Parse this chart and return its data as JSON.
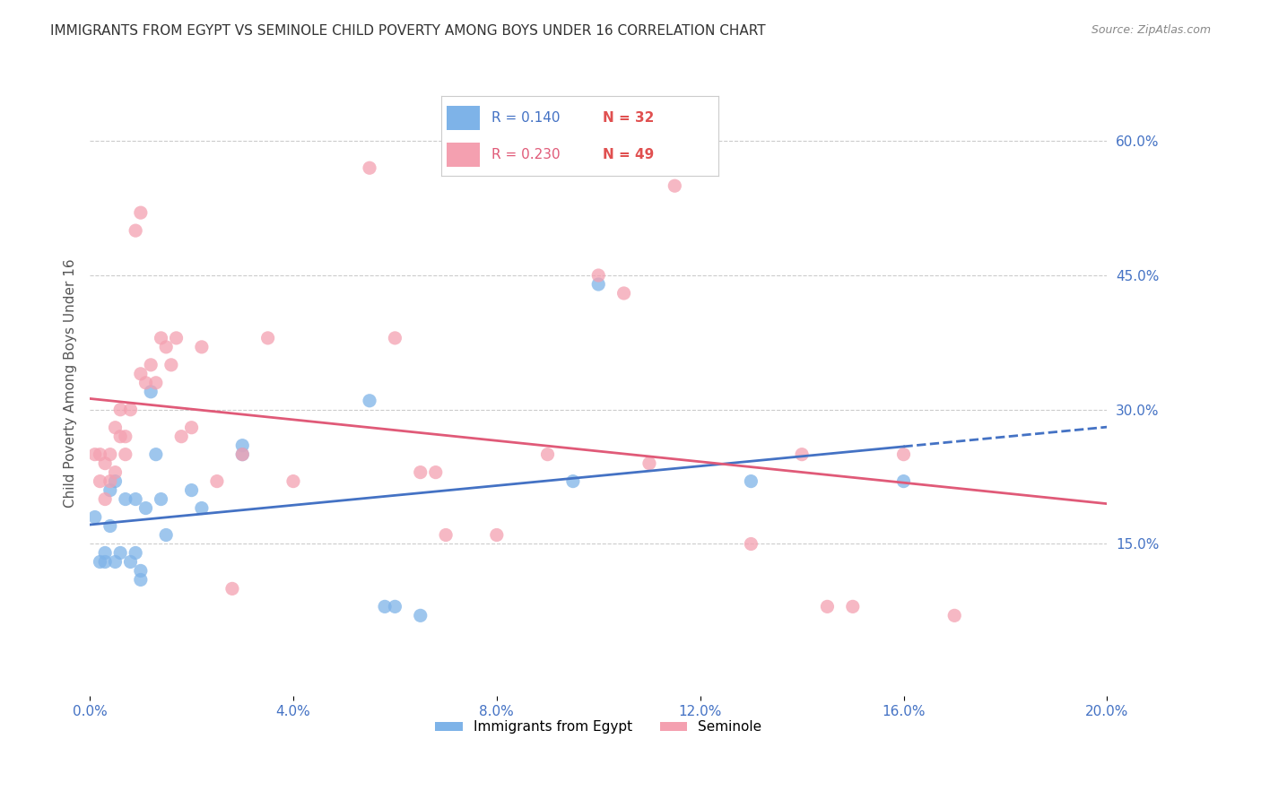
{
  "title": "IMMIGRANTS FROM EGYPT VS SEMINOLE CHILD POVERTY AMONG BOYS UNDER 16 CORRELATION CHART",
  "source": "Source: ZipAtlas.com",
  "xlabel": "",
  "ylabel": "Child Poverty Among Boys Under 16",
  "legend_label1": "Immigrants from Egypt",
  "legend_label2": "Seminole",
  "r1": 0.14,
  "n1": 32,
  "r2": 0.23,
  "n2": 49,
  "xlim": [
    0.0,
    0.2
  ],
  "ylim": [
    -0.02,
    0.68
  ],
  "xticks": [
    0.0,
    0.04,
    0.08,
    0.12,
    0.16,
    0.2
  ],
  "yticks_right": [
    0.15,
    0.3,
    0.45,
    0.6
  ],
  "color1": "#7EB3E8",
  "color2": "#F4A0B0",
  "line1_color": "#4472C4",
  "line2_color": "#E05A78",
  "scatter1_x": [
    0.001,
    0.002,
    0.003,
    0.003,
    0.004,
    0.004,
    0.005,
    0.005,
    0.006,
    0.007,
    0.008,
    0.009,
    0.009,
    0.01,
    0.01,
    0.011,
    0.012,
    0.013,
    0.014,
    0.015,
    0.02,
    0.022,
    0.03,
    0.03,
    0.055,
    0.058,
    0.06,
    0.065,
    0.095,
    0.1,
    0.13,
    0.16
  ],
  "scatter1_y": [
    0.18,
    0.13,
    0.14,
    0.13,
    0.21,
    0.17,
    0.22,
    0.13,
    0.14,
    0.2,
    0.13,
    0.14,
    0.2,
    0.11,
    0.12,
    0.19,
    0.32,
    0.25,
    0.2,
    0.16,
    0.21,
    0.19,
    0.26,
    0.25,
    0.31,
    0.08,
    0.08,
    0.07,
    0.22,
    0.44,
    0.22,
    0.22
  ],
  "scatter2_x": [
    0.001,
    0.002,
    0.002,
    0.003,
    0.003,
    0.004,
    0.004,
    0.005,
    0.005,
    0.006,
    0.006,
    0.007,
    0.007,
    0.008,
    0.009,
    0.01,
    0.01,
    0.011,
    0.012,
    0.013,
    0.014,
    0.015,
    0.016,
    0.017,
    0.018,
    0.02,
    0.022,
    0.025,
    0.028,
    0.03,
    0.035,
    0.04,
    0.055,
    0.06,
    0.065,
    0.068,
    0.07,
    0.08,
    0.09,
    0.1,
    0.105,
    0.11,
    0.115,
    0.13,
    0.14,
    0.145,
    0.15,
    0.16,
    0.17
  ],
  "scatter2_y": [
    0.25,
    0.25,
    0.22,
    0.24,
    0.2,
    0.25,
    0.22,
    0.23,
    0.28,
    0.27,
    0.3,
    0.27,
    0.25,
    0.3,
    0.5,
    0.52,
    0.34,
    0.33,
    0.35,
    0.33,
    0.38,
    0.37,
    0.35,
    0.38,
    0.27,
    0.28,
    0.37,
    0.22,
    0.1,
    0.25,
    0.38,
    0.22,
    0.57,
    0.38,
    0.23,
    0.23,
    0.16,
    0.16,
    0.25,
    0.45,
    0.43,
    0.24,
    0.55,
    0.15,
    0.25,
    0.08,
    0.08,
    0.25,
    0.07
  ],
  "background_color": "#FFFFFF",
  "title_fontsize": 11,
  "axis_label_fontsize": 11,
  "tick_fontsize": 11
}
